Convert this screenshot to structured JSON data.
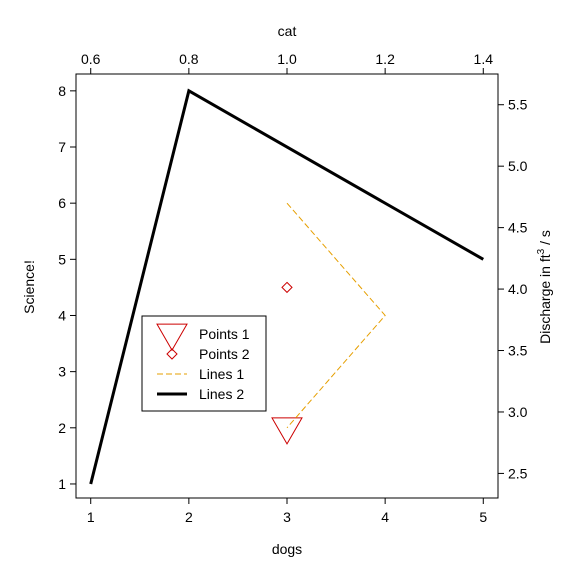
{
  "chart_data": {
    "type": "line",
    "title": "",
    "xlabel": "dogs",
    "ylabel": "Science!",
    "top_xlabel": "cat",
    "right_ylabel_main": "Discharge in ft",
    "right_ylabel_sup": "3",
    "right_ylabel_tail": " / s",
    "xlim": [
      0.85,
      5.15
    ],
    "ylim": [
      0.75,
      8.3
    ],
    "xticks": [
      1,
      2,
      3,
      4,
      5
    ],
    "yticks": [
      1,
      2,
      3,
      4,
      5,
      6,
      7,
      8
    ],
    "top_xlim": [
      0.57,
      1.43
    ],
    "top_xticks": [
      "0.6",
      "0.8",
      "1.0",
      "1.2",
      "1.4"
    ],
    "right_ylim": [
      2.3,
      5.75
    ],
    "right_yticks": [
      "2.5",
      "3.0",
      "3.5",
      "4.0",
      "4.5",
      "5.0",
      "5.5"
    ],
    "grid": false,
    "legend_position": "lower-left",
    "series": [
      {
        "name": "Points 1",
        "kind": "points",
        "marker": "triangle-down",
        "color": "#cc0000",
        "x": [
          3
        ],
        "y": [
          2
        ]
      },
      {
        "name": "Points 2",
        "kind": "points",
        "marker": "diamond",
        "color": "#cc0000",
        "x": [
          3
        ],
        "y": [
          4.5
        ]
      },
      {
        "name": "Lines 1",
        "kind": "line",
        "style": "dashed",
        "color": "#e69f00",
        "x": [
          3,
          4,
          3
        ],
        "y": [
          6,
          4,
          2
        ]
      },
      {
        "name": "Lines 2",
        "kind": "line",
        "style": "solid",
        "color": "#000000",
        "x": [
          1,
          2,
          5
        ],
        "y": [
          1,
          8,
          5
        ]
      }
    ]
  }
}
